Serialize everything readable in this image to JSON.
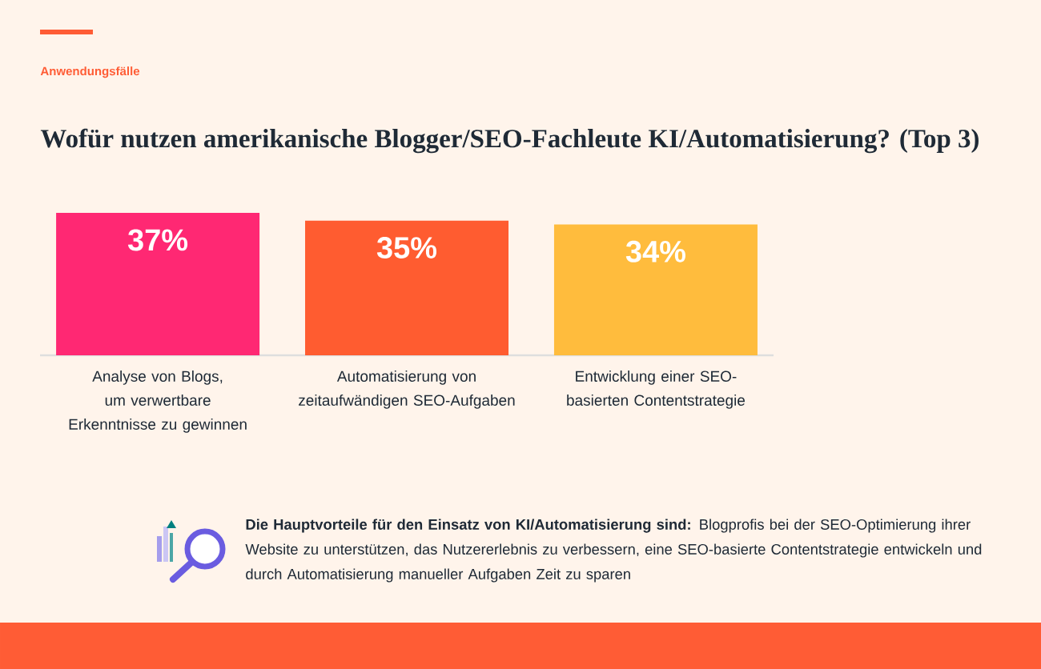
{
  "chart_data": {
    "type": "bar",
    "subtitle": "Anwendungsfälle",
    "title": "Wofür nutzen amerikanische Blogger/SEO-Fachleute KI/Automatisierung? (Top 3)",
    "categories": [
      "Analyse von Blogs, um verwertbare Erkenntnisse zu gewinnen",
      "Automatisierung von zeitaufwändigen SEO-Aufgaben",
      "Entwicklung einer SEO-basierten Contentstrategie"
    ],
    "values": [
      37,
      35,
      34
    ],
    "value_labels": [
      "37%",
      "35%",
      "34%"
    ],
    "colors": [
      "#ff2873",
      "#ff5c30",
      "#ffbc3d"
    ],
    "annotations": [
      "**Die Hauptvorteile für den Einsatz von KI/Automatisierung sind:** Blogprofis bei der SEO-Optimierung ihrer Website zu unterstützen, das Nutzererlebnis zu verbessern, eine SEO-basierte Contentstrategie entwickeln und durch Automatisierung manueller Aufgaben Zeit zu sparen"
    ]
  }
}
